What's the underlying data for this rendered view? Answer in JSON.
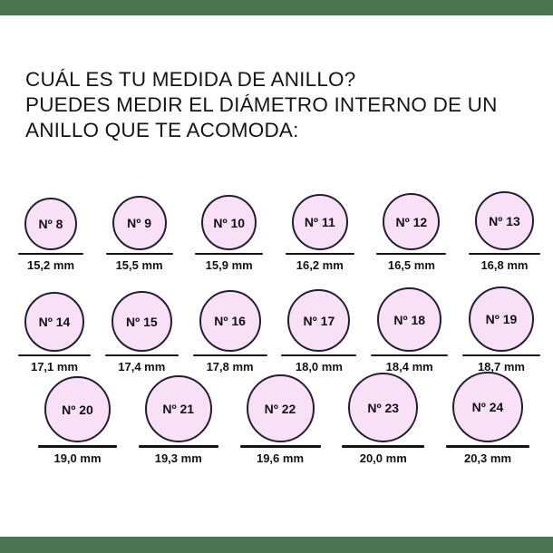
{
  "heading": {
    "lines": [
      "CUÁL ES TU MEDIDA DE ANILLO?",
      "PUEDES MEDIR EL DIÁMETRO INTERNO DE UN",
      "ANILLO QUE TE ACOMODA:"
    ]
  },
  "colors": {
    "band": "#4a7350",
    "ring_fill": "#f8e0f6",
    "ring_border": "#221f35",
    "underline": "#141414",
    "text": "#161616"
  },
  "rings": {
    "unit": "mm",
    "rows": [
      [
        {
          "label": "Nº 8",
          "mm": 15.2,
          "measure": "15,2 mm"
        },
        {
          "label": "Nº 9",
          "mm": 15.5,
          "measure": "15,5 mm"
        },
        {
          "label": "Nº 10",
          "mm": 15.9,
          "measure": "15,9 mm"
        },
        {
          "label": "Nº 11",
          "mm": 16.2,
          "measure": "16,2 mm"
        },
        {
          "label": "Nº 12",
          "mm": 16.5,
          "measure": "16,5 mm"
        },
        {
          "label": "Nº 13",
          "mm": 16.8,
          "measure": "16,8 mm"
        }
      ],
      [
        {
          "label": "Nº 14",
          "mm": 17.1,
          "measure": "17,1 mm"
        },
        {
          "label": "Nº 15",
          "mm": 17.4,
          "measure": "17,4 mm"
        },
        {
          "label": "Nº 16",
          "mm": 17.8,
          "measure": "17,8 mm"
        },
        {
          "label": "Nº 17",
          "mm": 18.0,
          "measure": "18,0 mm"
        },
        {
          "label": "Nº 18",
          "mm": 18.4,
          "measure": "18,4 mm"
        },
        {
          "label": "Nº 19",
          "mm": 18.7,
          "measure": "18,7 mm"
        }
      ],
      [
        {
          "label": "Nº 20",
          "mm": 19.0,
          "measure": "19,0 mm"
        },
        {
          "label": "Nº 21",
          "mm": 19.3,
          "measure": "19,3 mm"
        },
        {
          "label": "Nº 22",
          "mm": 19.6,
          "measure": "19,6 mm"
        },
        {
          "label": "Nº 23",
          "mm": 20.0,
          "measure": "20,0 mm"
        },
        {
          "label": "Nº 24",
          "mm": 20.3,
          "measure": "20,3 mm"
        }
      ]
    ]
  }
}
